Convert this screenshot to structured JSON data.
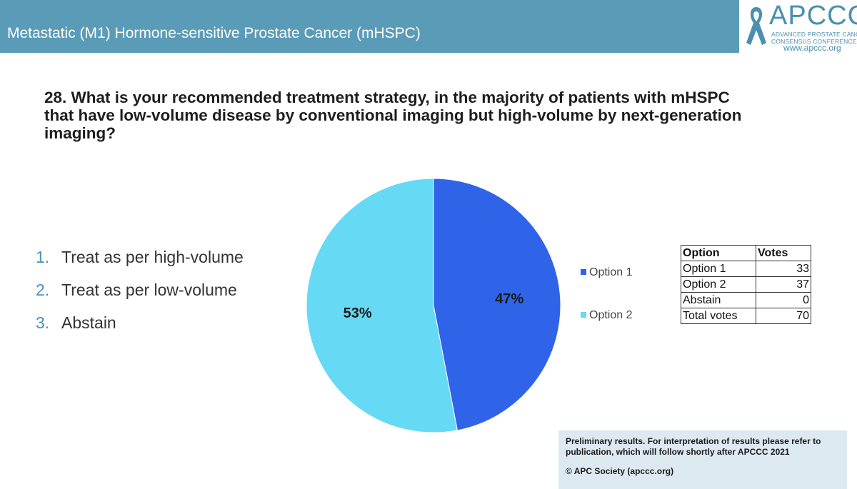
{
  "header": {
    "title": "Metastatic (M1) Hormone-sensitive Prostate Cancer (mHSPC)"
  },
  "logo": {
    "name": "APCCC",
    "subtitle_line1": "ADVANCED PROSTATE CANCER",
    "subtitle_line2": "CONSENSUS CONFERENCE",
    "url": "www.apccc.org",
    "color": "#4a8fb0"
  },
  "question": "28. What is your recommended treatment strategy, in the majority of patients with mHSPC that have low-volume disease by conventional imaging but high-volume by next-generation imaging?",
  "answer_options": [
    {
      "number": "1.",
      "label": "Treat as per high-volume"
    },
    {
      "number": "2.",
      "label": "Treat as per low-volume"
    },
    {
      "number": "3.",
      "label": "Abstain"
    }
  ],
  "chart_data": {
    "type": "pie",
    "slices": [
      {
        "name": "Option 1",
        "value": 47,
        "label": "47%",
        "color": "#2f64e8"
      },
      {
        "name": "Option 2",
        "value": 53,
        "label": "53%",
        "color": "#66d9f5"
      }
    ],
    "legend_position": "right"
  },
  "votes_table": {
    "headers": [
      "Option",
      "Votes"
    ],
    "rows": [
      {
        "option": "Option 1",
        "votes": "33"
      },
      {
        "option": "Option 2",
        "votes": "37"
      },
      {
        "option": "Abstain",
        "votes": "0"
      },
      {
        "option": "Total votes",
        "votes": "70"
      }
    ]
  },
  "disclaimer": {
    "text": "Preliminary results. For interpretation of results please refer to publication, which will follow shortly after APCCC 2021",
    "copyright": "© APC Society (apccc.org)"
  }
}
